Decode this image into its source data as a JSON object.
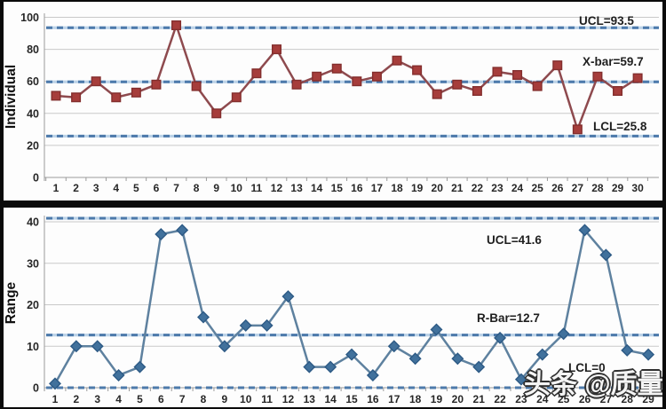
{
  "watermark": {
    "text": "头条 @质量与检测"
  },
  "colors": {
    "control_line": "#4d7aab",
    "control_line_base": "#bcd3e8",
    "grid": "#c9c9c9",
    "axis": "#9b9b9b",
    "tick_text": "#262626",
    "annotation_text": "#1f1f1f"
  },
  "chart_data": [
    {
      "type": "line",
      "name": "individual-control-chart",
      "title": "",
      "xlabel": "",
      "ylabel": "Individual",
      "ylim": [
        0,
        100
      ],
      "yticks": [
        0,
        20,
        40,
        60,
        80,
        100
      ],
      "grid": true,
      "marker": "square",
      "categories": [
        "1",
        "2",
        "3",
        "4",
        "5",
        "6",
        "7",
        "8",
        "9",
        "10",
        "11",
        "12",
        "13",
        "14",
        "15",
        "16",
        "17",
        "18",
        "19",
        "20",
        "21",
        "22",
        "23",
        "24",
        "25",
        "26",
        "27",
        "28",
        "29",
        "30"
      ],
      "values": [
        51,
        50,
        60,
        50,
        53,
        58,
        95,
        57,
        40,
        50,
        65,
        80,
        58,
        63,
        68,
        60,
        63,
        73,
        67,
        52,
        58,
        54,
        66,
        64,
        57,
        70,
        30,
        63,
        54,
        62
      ],
      "control_lines": [
        {
          "label": "UCL=93.5",
          "value": 93.5,
          "center": false
        },
        {
          "label": "X-bar=59.7",
          "value": 59.7,
          "center": true
        },
        {
          "label": "LCL=25.8",
          "value": 25.8,
          "center": false
        }
      ],
      "colors": {
        "marker": "#a63d3b",
        "marker_stroke": "#832e2d",
        "line": "#8e4a4e"
      }
    },
    {
      "type": "line",
      "name": "moving-range-control-chart",
      "title": "",
      "xlabel": "",
      "ylabel": "Range",
      "ylim": [
        0,
        41.6
      ],
      "yticks": [
        0,
        10,
        20,
        30,
        40
      ],
      "grid": true,
      "marker": "diamond",
      "categories": [
        "1",
        "2",
        "3",
        "4",
        "5",
        "6",
        "7",
        "8",
        "9",
        "10",
        "11",
        "12",
        "13",
        "14",
        "15",
        "16",
        "17",
        "18",
        "19",
        "20",
        "21",
        "22",
        "23",
        "24",
        "25",
        "26",
        "27",
        "28",
        "29"
      ],
      "values": [
        1,
        10,
        10,
        3,
        5,
        37,
        38,
        17,
        10,
        15,
        15,
        22,
        5,
        5,
        8,
        3,
        10,
        7,
        14,
        7,
        5,
        12,
        2,
        8,
        13,
        38,
        32,
        9,
        8
      ],
      "control_lines": [
        {
          "label": "UCL=41.6",
          "value": 41.6,
          "center": false
        },
        {
          "label": "R-Bar=12.7",
          "value": 12.7,
          "center": true
        },
        {
          "label": "LCL=0",
          "value": 0,
          "center": false
        }
      ],
      "colors": {
        "marker": "#41719c",
        "marker_stroke": "#2d5a85",
        "line": "#5e819f"
      }
    }
  ]
}
